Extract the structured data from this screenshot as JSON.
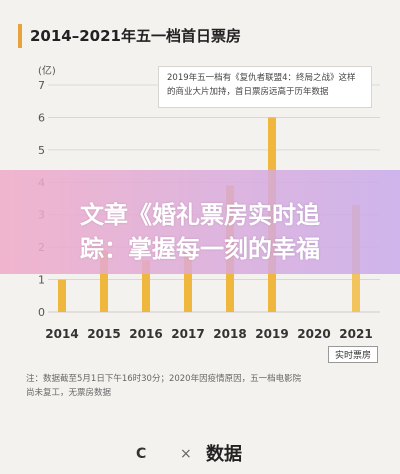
{
  "header": {
    "title": "2014–2021年五一档首日票房"
  },
  "unit_label": "(亿)",
  "note": "2019年五一档有《复仇者联盟4：终局之战》这样的商业大片加持，首日票房远高于历年数据",
  "overlay_text": [
    "文章《婚礼票房实时追",
    "踪：掌握每一刻的幸福"
  ],
  "legend_label": "实时票房",
  "source_text": [
    "注：数据截至5月1日下午16时30分；2020年因疫情原因，五一档电影院",
    "尚未复工，无票房数据"
  ],
  "footer": {
    "logo1": "C",
    "separator": "×",
    "logo2": "数据"
  },
  "colors": {
    "bar": "#efb73e",
    "bar_2021": "#f2c45e",
    "grid": "#d6d3cf"
  },
  "chart_data": {
    "type": "bar",
    "categories": [
      "2014",
      "2015",
      "2016",
      "2017",
      "2018",
      "2019",
      "2020",
      "2021"
    ],
    "values": [
      1.0,
      1.9,
      1.6,
      2.0,
      3.9,
      6.0,
      0,
      3.3
    ],
    "yticks": [
      "0",
      "1",
      "2",
      "3",
      "4",
      "5",
      "6",
      "7"
    ],
    "ylim": [
      0,
      7
    ],
    "title": "2014–2021年五一档首日票房",
    "ylabel": "(亿)"
  }
}
